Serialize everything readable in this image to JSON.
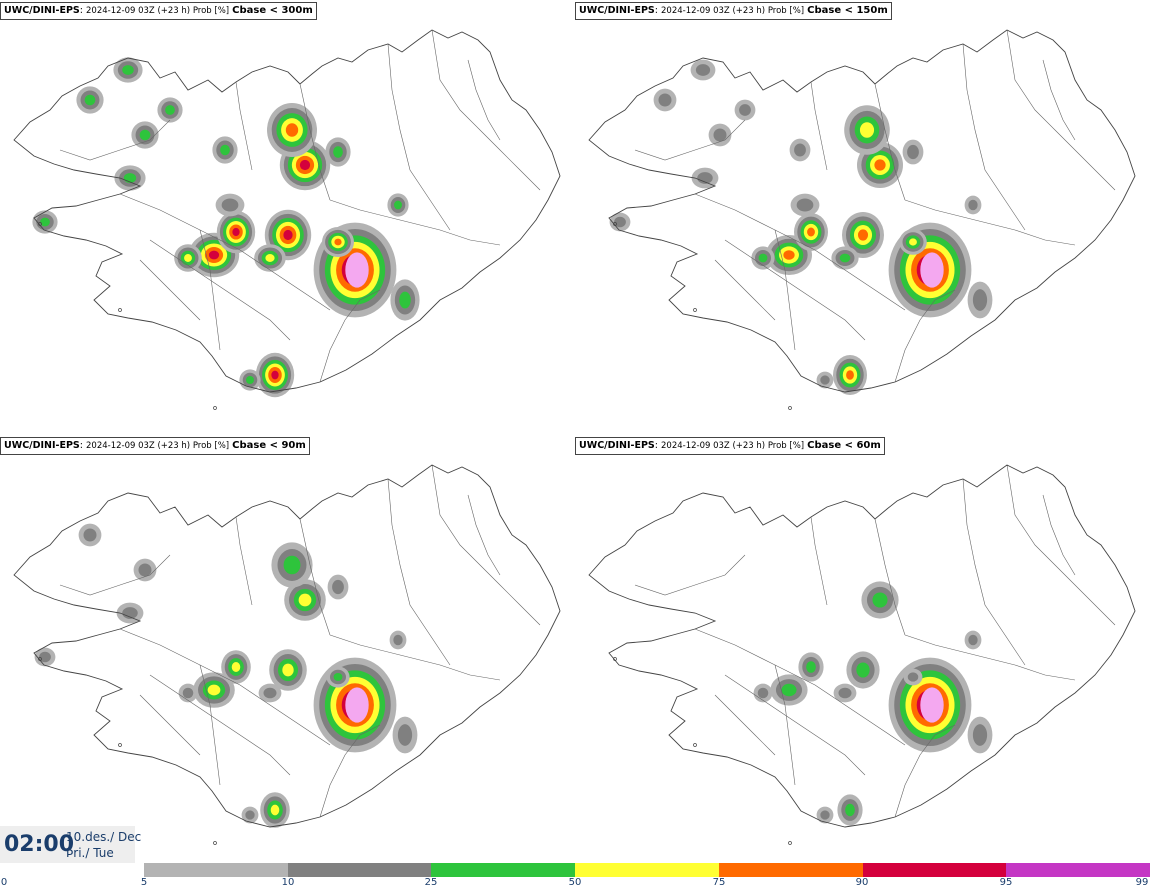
{
  "panels": [
    {
      "source": "UWC/DINI-EPS",
      "meta": "2024-12-09 03Z (+23 h) Prob [%]",
      "threshold": "Cbase < 300m",
      "level": 4
    },
    {
      "source": "UWC/DINI-EPS",
      "meta": "2024-12-09 03Z (+23 h) Prob [%]",
      "threshold": "Cbase < 150m",
      "level": 3
    },
    {
      "source": "UWC/DINI-EPS",
      "meta": "2024-12-09 03Z (+23 h) Prob [%]",
      "threshold": "Cbase < 90m",
      "level": 2
    },
    {
      "source": "UWC/DINI-EPS",
      "meta": "2024-12-09 03Z (+23 h) Prob [%]",
      "threshold": "Cbase < 60m",
      "level": 1
    }
  ],
  "valid_time": {
    "time": "02:00",
    "date_line1": "10.des./ Dec",
    "date_line2": "Þri./ Tue"
  },
  "legend": {
    "ticks": [
      "0",
      "5",
      "10",
      "25",
      "50",
      "75",
      "90",
      "95",
      "99"
    ],
    "colors": [
      "#b3b3b3",
      "#808080",
      "#2ec43c",
      "#ffff33",
      "#ff6a00",
      "#d4003c",
      "#c436c4"
    ]
  }
}
